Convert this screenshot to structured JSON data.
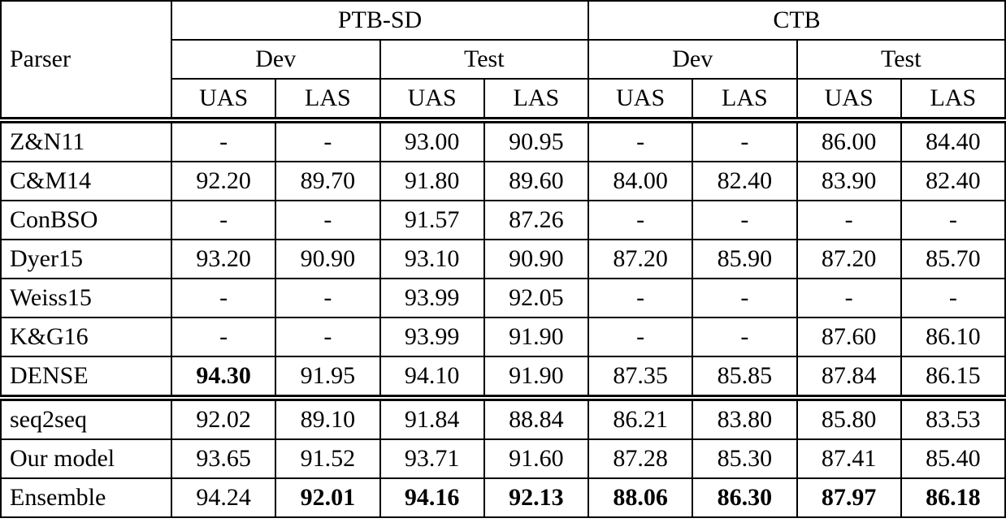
{
  "table": {
    "header": {
      "parser_label": "Parser",
      "groups": [
        {
          "label": "PTB-SD"
        },
        {
          "label": "CTB"
        }
      ],
      "subgroup_labels": [
        "Dev",
        "Test",
        "Dev",
        "Test"
      ],
      "metric_labels": [
        "UAS",
        "LAS",
        "UAS",
        "LAS",
        "UAS",
        "LAS",
        "UAS",
        "LAS"
      ]
    },
    "sections": [
      {
        "name": "prior-work",
        "rows": [
          {
            "parser": "Z&N11",
            "values": [
              "-",
              "-",
              "93.00",
              "90.95",
              "-",
              "-",
              "86.00",
              "84.40"
            ],
            "bold": []
          },
          {
            "parser": "C&M14",
            "values": [
              "92.20",
              "89.70",
              "91.80",
              "89.60",
              "84.00",
              "82.40",
              "83.90",
              "82.40"
            ],
            "bold": []
          },
          {
            "parser": "ConBSO",
            "values": [
              "-",
              "-",
              "91.57",
              "87.26",
              "-",
              "-",
              "-",
              "-"
            ],
            "bold": []
          },
          {
            "parser": "Dyer15",
            "values": [
              "93.20",
              "90.90",
              "93.10",
              "90.90",
              "87.20",
              "85.90",
              "87.20",
              "85.70"
            ],
            "bold": []
          },
          {
            "parser": "Weiss15",
            "values": [
              "-",
              "-",
              "93.99",
              "92.05",
              "-",
              "-",
              "-",
              "-"
            ],
            "bold": []
          },
          {
            "parser": "K&G16",
            "values": [
              "-",
              "-",
              "93.99",
              "91.90",
              "-",
              "-",
              "87.60",
              "86.10"
            ],
            "bold": []
          },
          {
            "parser": "DENSE",
            "values": [
              "94.30",
              "91.95",
              "94.10",
              "91.90",
              "87.35",
              "85.85",
              "87.84",
              "86.15"
            ],
            "bold": [
              0
            ]
          }
        ]
      },
      {
        "name": "our-systems",
        "rows": [
          {
            "parser": "seq2seq",
            "values": [
              "92.02",
              "89.10",
              "91.84",
              "88.84",
              "86.21",
              "83.80",
              "85.80",
              "83.53"
            ],
            "bold": []
          },
          {
            "parser": "Our model",
            "values": [
              "93.65",
              "91.52",
              "93.71",
              "91.60",
              "87.28",
              "85.30",
              "87.41",
              "85.40"
            ],
            "bold": []
          },
          {
            "parser": "Ensemble",
            "values": [
              "94.24",
              "92.01",
              "94.16",
              "92.13",
              "88.06",
              "86.30",
              "87.97",
              "86.18"
            ],
            "bold": [
              1,
              2,
              3,
              4,
              5,
              6,
              7
            ]
          }
        ]
      }
    ]
  }
}
